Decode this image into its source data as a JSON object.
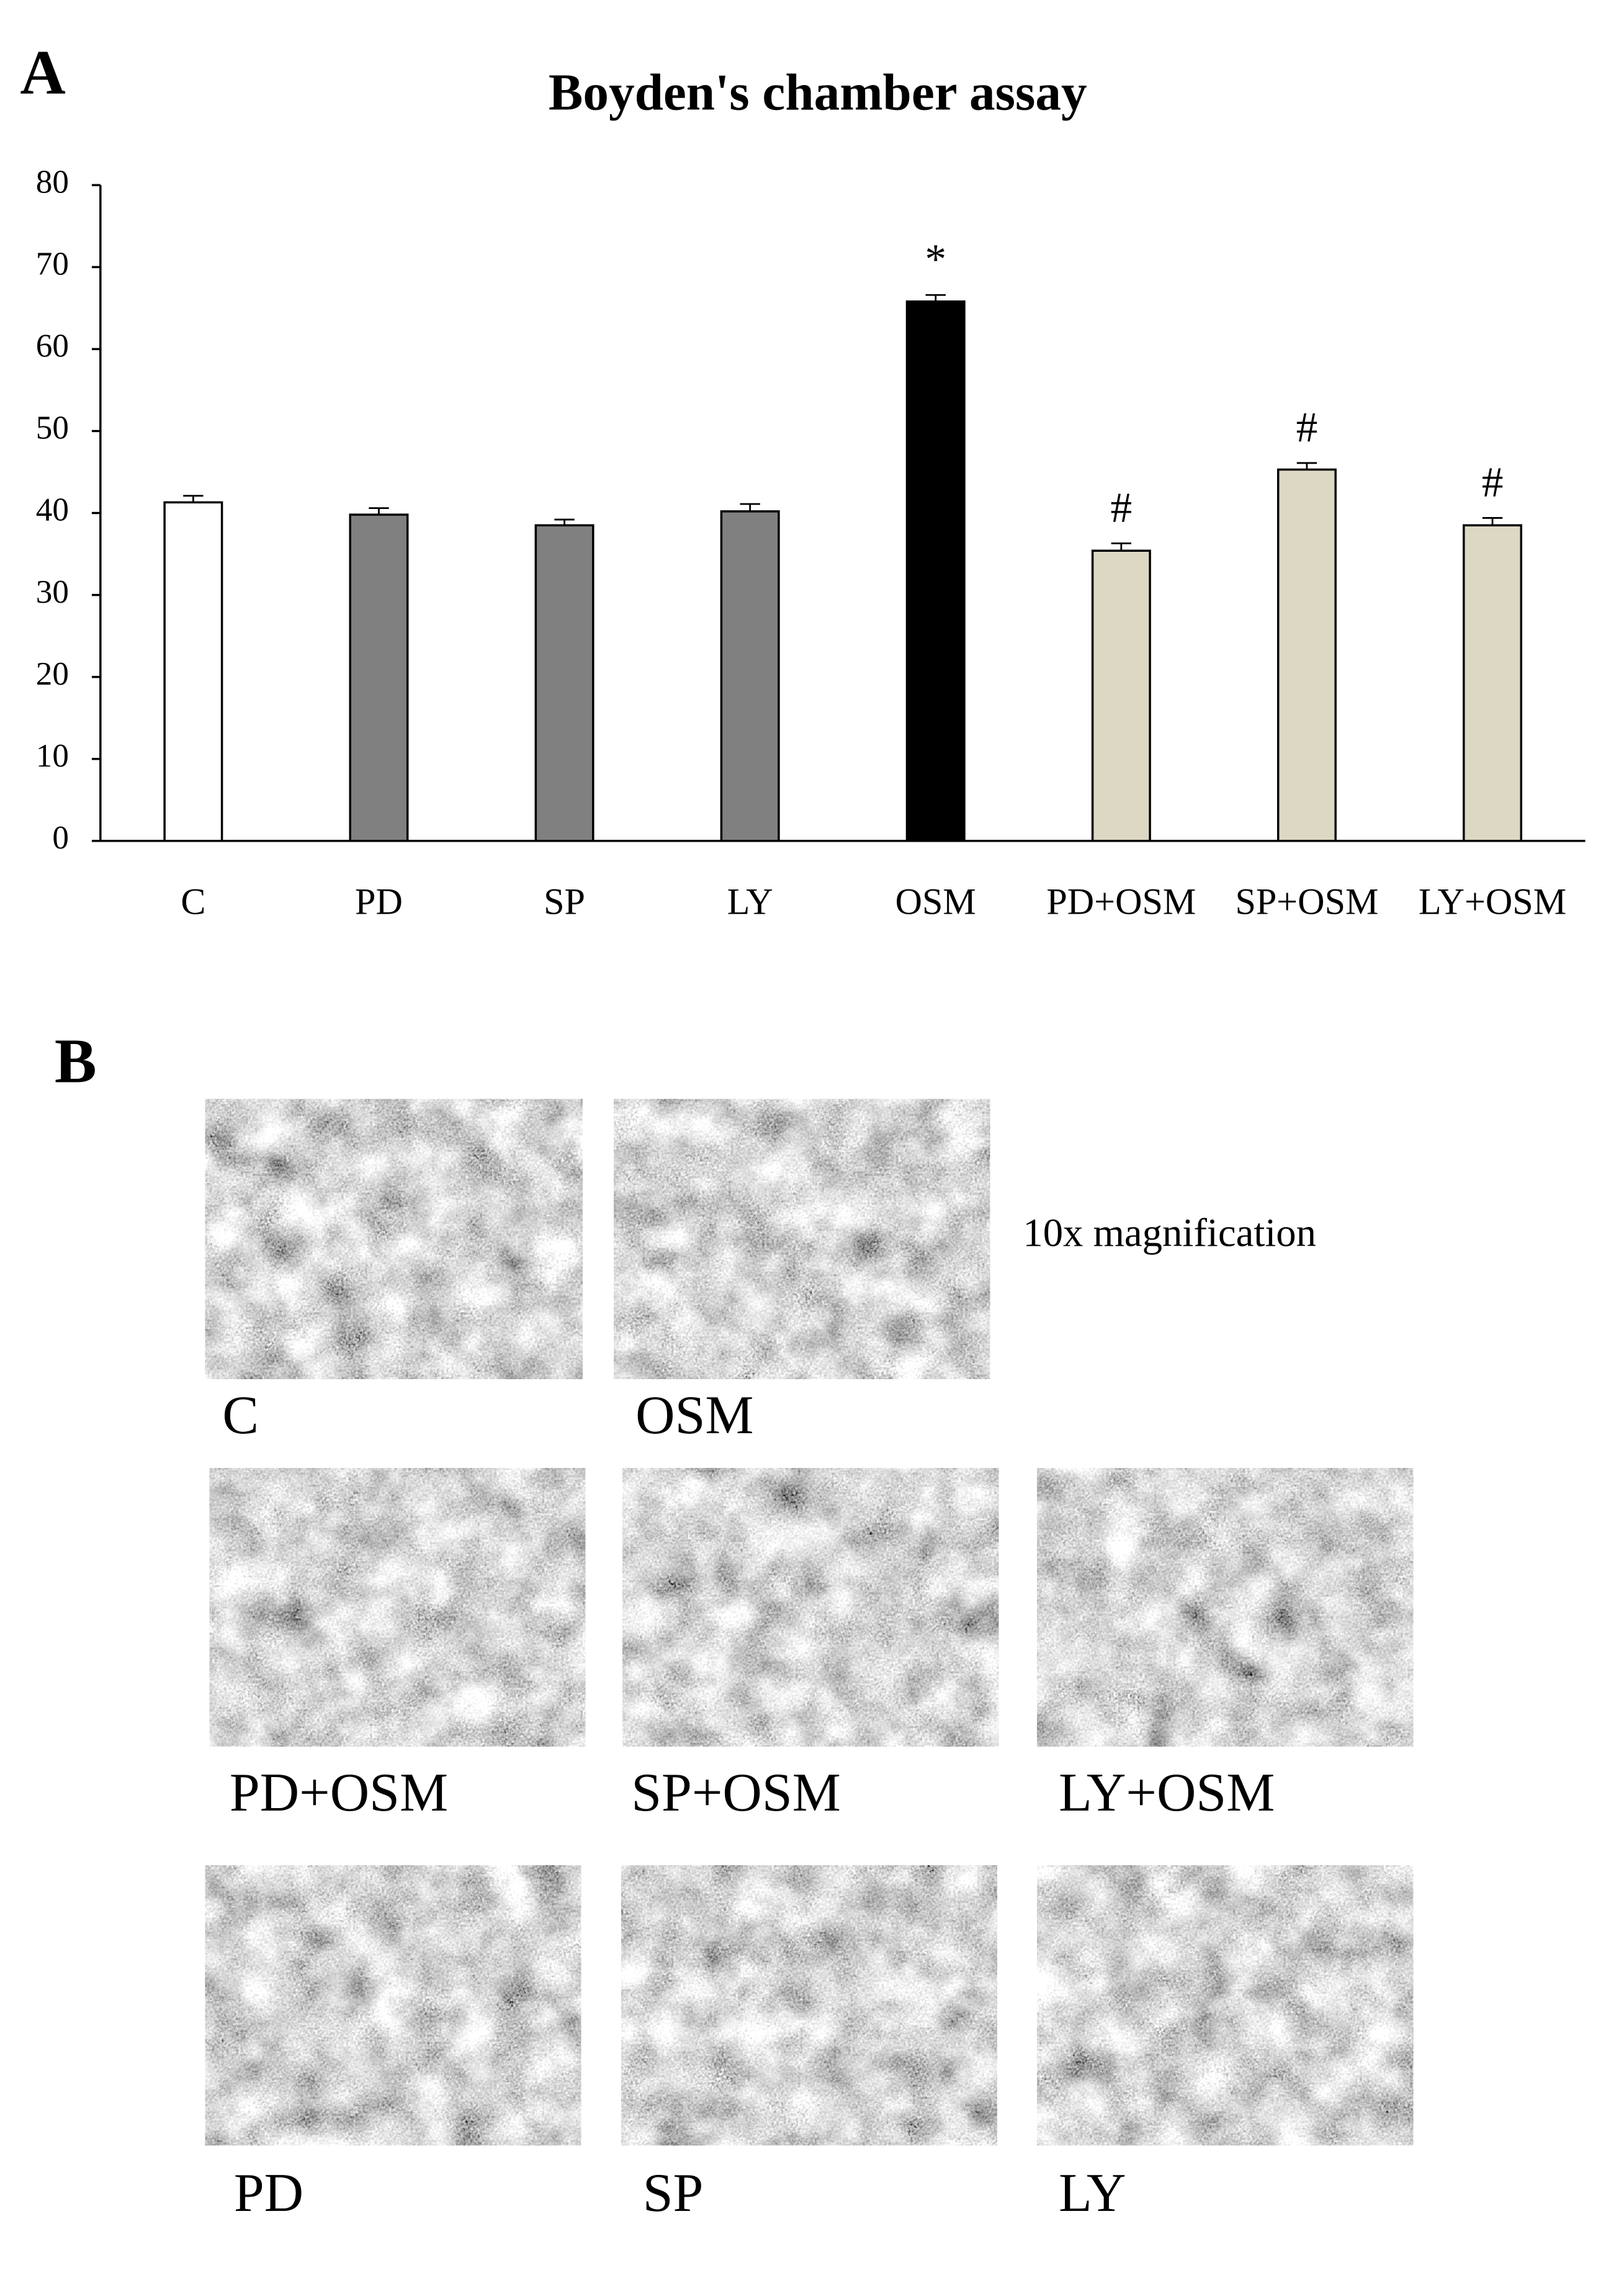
{
  "panel_labels": [
    "A",
    "B"
  ],
  "chart_data": {
    "type": "bar",
    "title": "Boyden's chamber assay",
    "categories": [
      "C",
      "PD",
      "SP",
      "LY",
      "OSM",
      "PD+OSM",
      "SP+OSM",
      "LY+OSM"
    ],
    "values": [
      41.3,
      39.8,
      38.5,
      40.2,
      65.8,
      35.4,
      45.3,
      38.5
    ],
    "errors": [
      0.8,
      0.8,
      0.7,
      0.9,
      0.8,
      0.9,
      0.8,
      0.9
    ],
    "colors": [
      "#ffffff",
      "#808080",
      "#808080",
      "#808080",
      "#000000",
      "#ddd8c4",
      "#ddd8c4",
      "#ddd8c4"
    ],
    "annotations": [
      null,
      null,
      null,
      null,
      "*",
      "#",
      "#",
      "#"
    ],
    "ylim": [
      0,
      80
    ],
    "yticks": [
      0,
      10,
      20,
      30,
      40,
      50,
      60,
      70,
      80
    ],
    "grid": false
  },
  "micrographs": {
    "magnification_label": "10x magnification",
    "captions": [
      "C",
      "OSM",
      "PD+OSM",
      "SP+OSM",
      "LY+OSM",
      "PD",
      "SP",
      "LY"
    ]
  }
}
